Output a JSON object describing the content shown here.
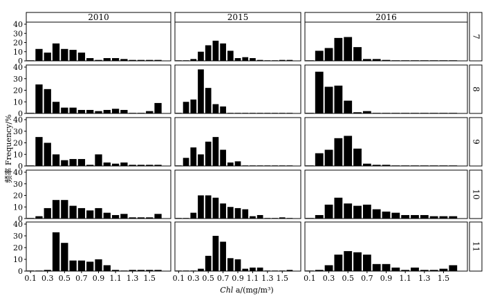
{
  "chart_data": {
    "type": "bar",
    "layout": "faceted-grid",
    "column_strips": [
      "2010",
      "2015",
      "2016"
    ],
    "row_strips": [
      "7",
      "8",
      "9",
      "10",
      "11"
    ],
    "xlabel_italic": "Chl",
    "xlabel_rest": " a/(mg/m³)",
    "ylabel": "频率 Frequency/%",
    "x_ticks": [
      "0.1",
      "0.3",
      "0.5",
      "0.7",
      "0.9",
      "1.1",
      "1.3",
      "1.5"
    ],
    "y_ticks": [
      "0",
      "10",
      "20",
      "30",
      "40"
    ],
    "ylim": [
      0,
      40
    ],
    "xlim": [
      0.05,
      1.75
    ],
    "bin_width": 0.1,
    "bin_centers": [
      0.1,
      0.2,
      0.3,
      0.4,
      0.5,
      0.6,
      0.7,
      0.8,
      0.9,
      1.0,
      1.1,
      1.2,
      1.3,
      1.4,
      1.5,
      1.6
    ],
    "grid": false,
    "bar_color": "#000000",
    "panels": [
      [
        [
          0,
          13,
          9,
          19,
          13,
          12,
          9,
          3,
          1,
          3,
          3,
          2,
          1,
          1,
          1,
          1
        ],
        [
          0,
          0,
          2,
          10,
          17,
          22,
          19,
          11,
          3,
          4,
          3,
          1,
          0,
          0,
          1,
          1
        ],
        [
          0,
          11,
          14,
          25,
          26,
          15,
          2,
          2,
          1,
          0,
          0,
          0,
          0,
          0,
          0,
          0
        ]
      ],
      [
        [
          0,
          25,
          21,
          10,
          5,
          5,
          3,
          3,
          2,
          3,
          4,
          3,
          0,
          0,
          2,
          9
        ],
        [
          0,
          10,
          12,
          38,
          22,
          8,
          6,
          0,
          0,
          0,
          0,
          0,
          0,
          0,
          0,
          0
        ],
        [
          0,
          36,
          23,
          24,
          11,
          1,
          2,
          0,
          0,
          0,
          0,
          0,
          0,
          0,
          0,
          0
        ]
      ],
      [
        [
          0,
          25,
          20,
          10,
          5,
          6,
          6,
          1,
          10,
          3,
          2,
          3,
          1,
          1,
          1,
          1
        ],
        [
          0,
          7,
          16,
          10,
          21,
          25,
          14,
          3,
          4,
          0,
          0,
          0,
          0,
          0,
          0,
          0
        ],
        [
          0,
          11,
          14,
          24,
          26,
          15,
          2,
          1,
          1,
          0,
          0,
          0,
          0,
          0,
          0,
          0
        ]
      ],
      [
        [
          0,
          2,
          9,
          16,
          16,
          11,
          9,
          7,
          9,
          5,
          3,
          4,
          1,
          1,
          1,
          4
        ],
        [
          0,
          0,
          5,
          20,
          20,
          18,
          13,
          10,
          9,
          8,
          2,
          3,
          0,
          0,
          1,
          0
        ],
        [
          0,
          3,
          12,
          18,
          13,
          11,
          12,
          8,
          6,
          5,
          3,
          3,
          3,
          2,
          2,
          2
        ]
      ],
      [
        [
          0,
          0,
          1,
          33,
          24,
          9,
          9,
          8,
          10,
          5,
          1,
          0,
          1,
          1,
          1,
          1
        ],
        [
          0,
          0,
          0,
          2,
          13,
          30,
          25,
          11,
          10,
          2,
          3,
          3,
          0,
          0,
          0,
          1
        ],
        [
          0,
          1,
          5,
          14,
          17,
          16,
          14,
          6,
          6,
          3,
          1,
          3,
          1,
          1,
          2,
          5
        ]
      ]
    ]
  }
}
